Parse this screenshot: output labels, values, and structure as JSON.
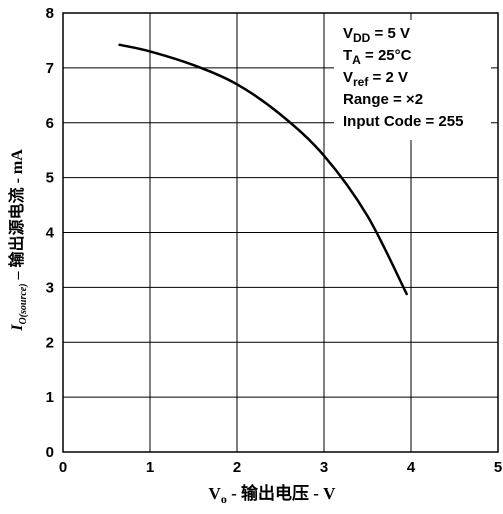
{
  "chart_data": {
    "type": "line",
    "xlim": [
      0,
      5
    ],
    "ylim": [
      0,
      8
    ],
    "x_ticks": [
      "0",
      "1",
      "2",
      "3",
      "4",
      "5"
    ],
    "y_ticks": [
      "0",
      "1",
      "2",
      "3",
      "4",
      "5",
      "6",
      "7",
      "8"
    ],
    "grid": true,
    "xlabel": {
      "base": "V",
      "sub": "o",
      "text": " - 输出电压 - V"
    },
    "ylabel": {
      "base": "I",
      "sub": "O(source)",
      "text": " – 输出源电流 - mA"
    },
    "series": [
      {
        "x": [
          0.65,
          1.0,
          1.5,
          2.0,
          2.5,
          3.0,
          3.5,
          3.95
        ],
        "y": [
          7.42,
          7.3,
          7.05,
          6.7,
          6.15,
          5.4,
          4.3,
          2.88
        ]
      }
    ],
    "legend_position": "top-right",
    "annotation": [
      {
        "base": "V",
        "sub": "DD",
        "rest": " = 5 V"
      },
      {
        "base": "T",
        "sub": "A",
        "rest": " = 25°C"
      },
      {
        "base": "V",
        "sub": "ref",
        "rest": " = 2 V"
      },
      {
        "base": "Range = ×2",
        "sub": "",
        "rest": ""
      },
      {
        "base": "Input Code = 255",
        "sub": "",
        "rest": ""
      }
    ],
    "colors": {
      "line": "#000000",
      "grid": "#000000",
      "background": "#ffffff"
    }
  }
}
